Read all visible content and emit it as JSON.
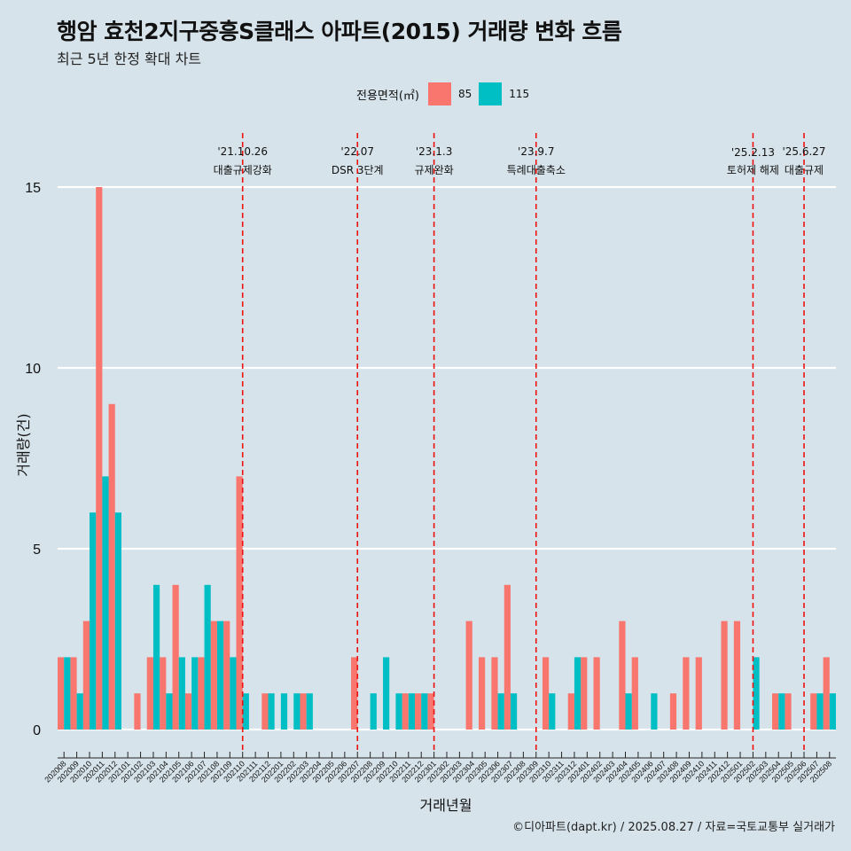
{
  "header": {
    "title": "행암 효천2지구중흥S클래스 아파트(2015) 거래량 변화 흐름",
    "subtitle": "최근 5년 한정 확대 차트"
  },
  "legend": {
    "title": "전용면적(㎡)",
    "items": [
      {
        "label": "85",
        "color": "#f8766d"
      },
      {
        "label": "115",
        "color": "#00bfc4"
      }
    ]
  },
  "caption": "©디아파트(dapt.kr) / 2025.08.27 / 자료=국토교통부 실거래가",
  "chart_data": {
    "type": "bar",
    "xlabel": "거래년월",
    "ylabel": "거래량(건)",
    "ylim": [
      0,
      15
    ],
    "yticks": [
      0,
      5,
      10,
      15
    ],
    "grid": true,
    "legend_position": "top",
    "categories": [
      "202008",
      "202009",
      "202010",
      "202011",
      "202012",
      "202101",
      "202102",
      "202103",
      "202104",
      "202105",
      "202106",
      "202107",
      "202108",
      "202109",
      "202110",
      "202111",
      "202112",
      "202201",
      "202202",
      "202203",
      "202204",
      "202205",
      "202206",
      "202207",
      "202208",
      "202209",
      "202210",
      "202211",
      "202212",
      "202301",
      "202302",
      "202303",
      "202304",
      "202305",
      "202306",
      "202307",
      "202308",
      "202309",
      "202310",
      "202311",
      "202312",
      "202401",
      "202402",
      "202403",
      "202404",
      "202405",
      "202406",
      "202407",
      "202408",
      "202409",
      "202410",
      "202411",
      "202412",
      "202501",
      "202502",
      "202503",
      "202504",
      "202505",
      "202506",
      "202507",
      "202508"
    ],
    "series": [
      {
        "name": "85",
        "color": "#f8766d",
        "values": [
          2,
          2,
          3,
          15,
          9,
          0,
          1,
          2,
          2,
          4,
          1,
          2,
          3,
          3,
          7,
          0,
          1,
          0,
          0,
          1,
          0,
          0,
          0,
          2,
          0,
          0,
          0,
          1,
          1,
          1,
          0,
          0,
          3,
          2,
          2,
          4,
          0,
          0,
          2,
          0,
          1,
          2,
          2,
          0,
          3,
          2,
          0,
          0,
          1,
          2,
          2,
          0,
          3,
          3,
          0,
          0,
          1,
          1,
          0,
          1,
          2
        ]
      },
      {
        "name": "115",
        "color": "#00bfc4",
        "values": [
          2,
          1,
          6,
          7,
          6,
          0,
          0,
          4,
          1,
          2,
          2,
          4,
          3,
          2,
          1,
          0,
          1,
          1,
          1,
          1,
          0,
          0,
          0,
          0,
          1,
          2,
          1,
          1,
          1,
          0,
          0,
          0,
          0,
          0,
          1,
          1,
          0,
          0,
          1,
          0,
          2,
          0,
          0,
          0,
          1,
          0,
          1,
          0,
          0,
          0,
          0,
          0,
          0,
          0,
          2,
          0,
          1,
          0,
          0,
          1,
          1
        ]
      }
    ],
    "annotations": [
      {
        "category": "202110",
        "date": "'21.10.26",
        "text": "대출규제강화"
      },
      {
        "category": "202207",
        "date": "'22.07",
        "text": "DSR 3단계"
      },
      {
        "category": "202301",
        "date": "'23.1.3",
        "text": "규제완화"
      },
      {
        "category": "202309",
        "date": "'23.9.7",
        "text": "특례대출축소"
      },
      {
        "category": "202502",
        "date": "'25.2.13",
        "text": "토허제 해제"
      },
      {
        "category": "202506",
        "date": "'25.6.27",
        "text": "대출규제"
      }
    ]
  }
}
